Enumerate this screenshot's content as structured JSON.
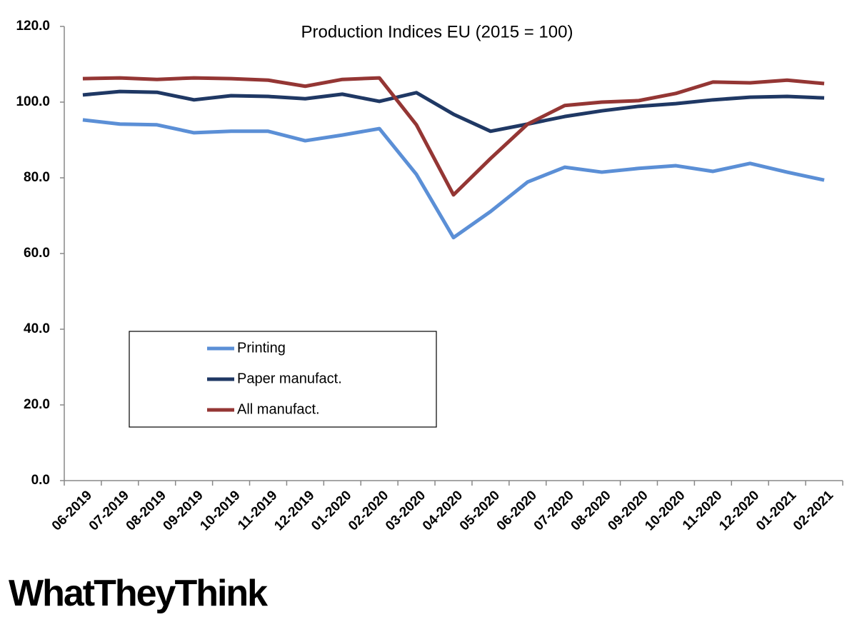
{
  "chart_data": {
    "type": "line",
    "title": "Production Indices EU (2015 = 100)",
    "categories": [
      "06-2019",
      "07-2019",
      "08-2019",
      "09-2019",
      "10-2019",
      "11-2019",
      "12-2019",
      "01-2020",
      "02-2020",
      "03-2020",
      "04-2020",
      "05-2020",
      "06-2020",
      "07-2020",
      "08-2020",
      "09-2020",
      "10-2020",
      "11-2020",
      "12-2020",
      "01-2021",
      "02-2021"
    ],
    "series": [
      {
        "name": "Printing",
        "color": "#5b8fd6",
        "values": [
          95.3,
          94.2,
          94.0,
          91.9,
          92.3,
          92.3,
          89.8,
          91.3,
          93.0,
          80.9,
          64.2,
          71.1,
          78.9,
          82.8,
          81.5,
          82.5,
          83.2,
          81.7,
          83.8,
          81.5,
          79.4
        ]
      },
      {
        "name": "Paper manufact.",
        "color": "#1f3864",
        "values": [
          101.9,
          102.8,
          102.6,
          100.6,
          101.7,
          101.5,
          100.9,
          102.1,
          100.2,
          102.5,
          96.8,
          92.3,
          94.2,
          96.2,
          97.7,
          98.9,
          99.6,
          100.6,
          101.3,
          101.5,
          101.1
        ]
      },
      {
        "name": "All manufact.",
        "color": "#943634",
        "values": [
          106.2,
          106.4,
          106.0,
          106.4,
          106.2,
          105.8,
          104.2,
          106.0,
          106.4,
          94.0,
          75.5,
          85.1,
          94.2,
          99.1,
          100.0,
          100.4,
          102.3,
          105.3,
          105.1,
          105.8,
          104.9
        ]
      }
    ],
    "ylim": [
      0,
      120
    ],
    "yticks": [
      {
        "value": 0,
        "label": "0.0"
      },
      {
        "value": 20,
        "label": "20.0"
      },
      {
        "value": 40,
        "label": "40.0"
      },
      {
        "value": 60,
        "label": "60.0"
      },
      {
        "value": 80,
        "label": "80.0"
      },
      {
        "value": 100,
        "label": "100.0"
      },
      {
        "value": 120,
        "label": "120.0"
      }
    ],
    "grid": false,
    "legend": "inside-left",
    "logo": "WhatTheyThink"
  }
}
